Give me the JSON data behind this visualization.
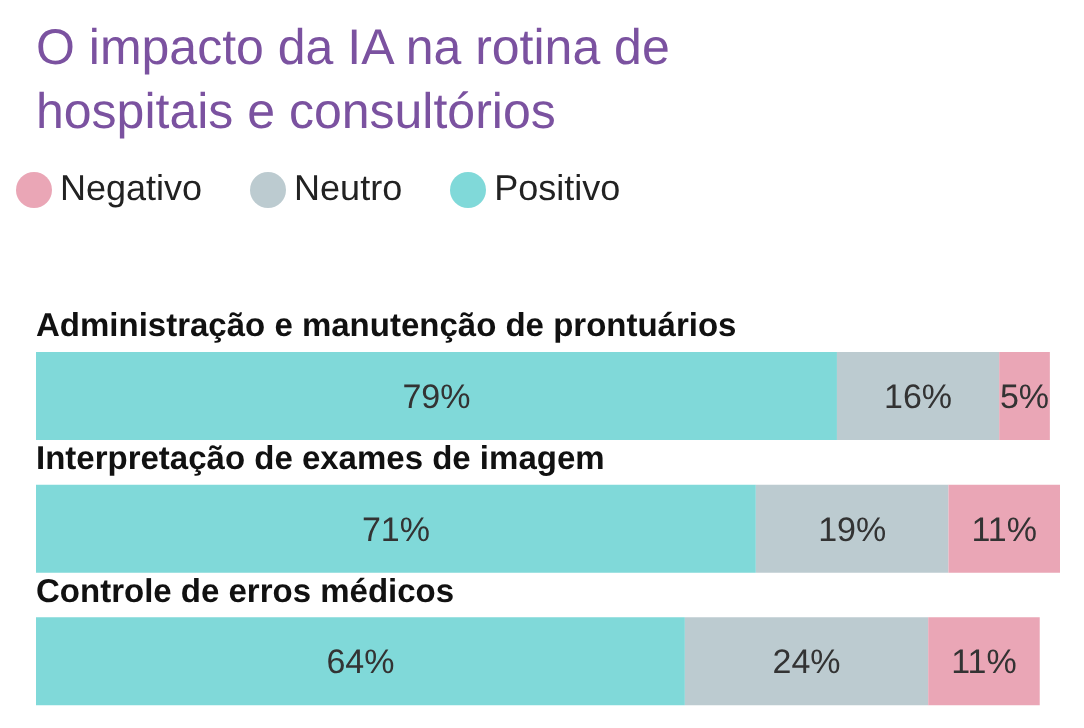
{
  "chart_data": {
    "type": "bar",
    "orientation": "horizontal",
    "stacked": true,
    "title": "O impacto da IA na rotina de hospitais e consultórios",
    "categories": [
      "Administração e manutenção de prontuários",
      "Interpretação de exames de imagem",
      "Controle de erros médicos"
    ],
    "series": [
      {
        "name": "Positivo",
        "color": "#80d9d9",
        "values": [
          79,
          71,
          64
        ],
        "value_labels": [
          "79%",
          "71%",
          "64%"
        ]
      },
      {
        "name": "Neutro",
        "color": "#bccbd0",
        "values": [
          16,
          19,
          24
        ],
        "value_labels": [
          "16%",
          "19%",
          "24%"
        ]
      },
      {
        "name": "Negativo",
        "color": "#eaa6b6",
        "values": [
          5,
          11,
          11
        ],
        "value_labels": [
          "5%",
          "11%",
          "11%"
        ]
      }
    ],
    "legend": "top left",
    "grid": false
  }
}
